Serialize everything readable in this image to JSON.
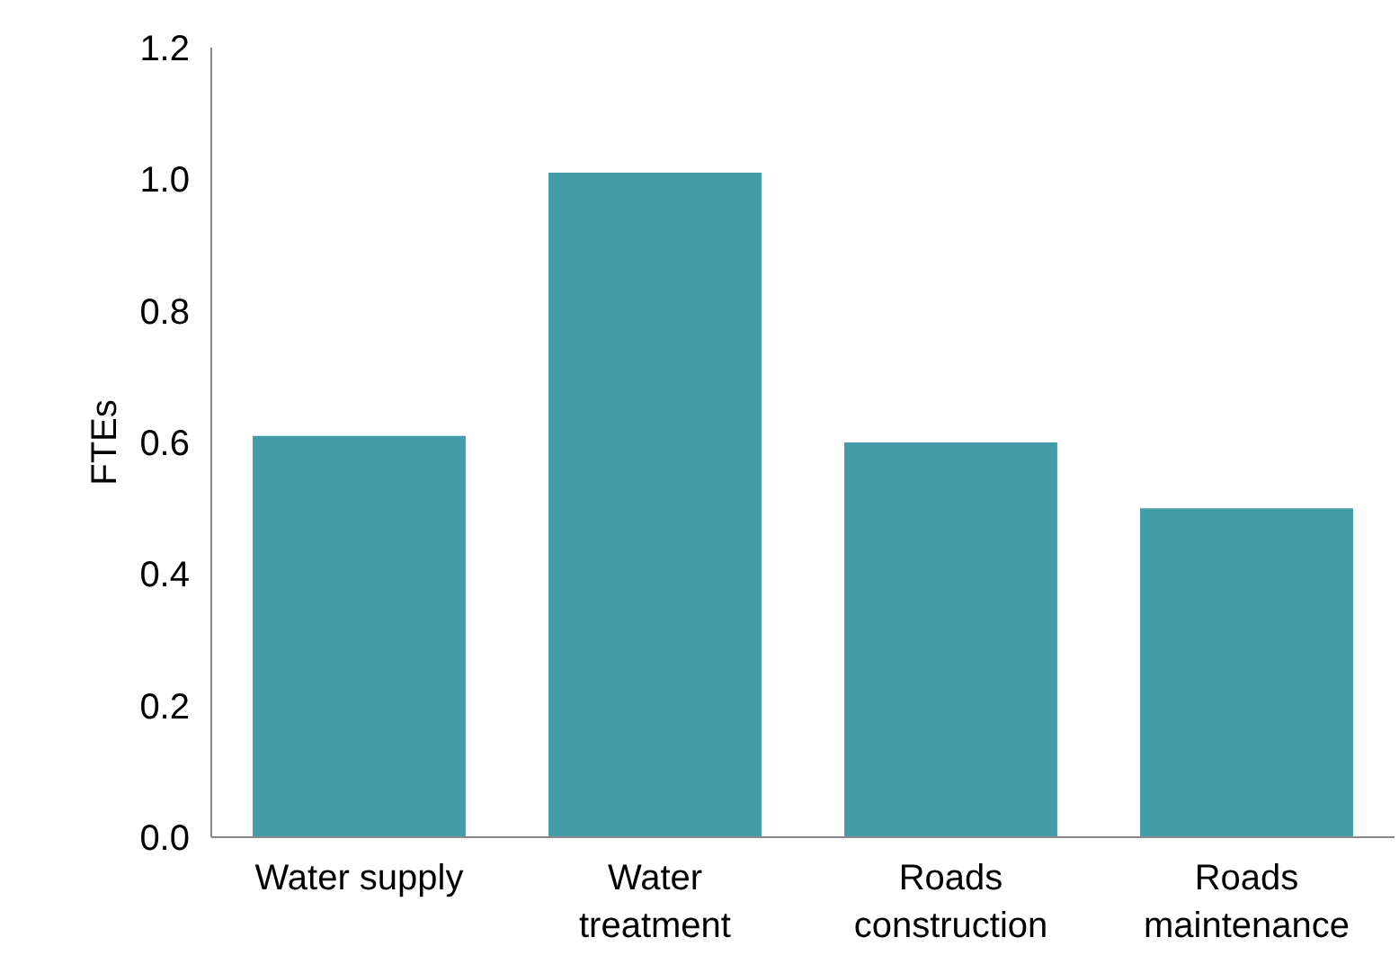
{
  "chart_data": {
    "type": "bar",
    "ylabel": "FTEs",
    "categories": [
      "Water supply",
      "Water\ntreatment",
      "Roads\nconstruction",
      "Roads\nmaintenance"
    ],
    "values": [
      0.61,
      1.01,
      0.6,
      0.5
    ],
    "color": "#429da9",
    "ylim": [
      0,
      1.2
    ],
    "yticks": [
      {
        "value": 0,
        "label": "0.0"
      },
      {
        "value": 0.2,
        "label": "0.2"
      },
      {
        "value": 0.4,
        "label": "0.4"
      },
      {
        "value": 0.6,
        "label": "0.6"
      },
      {
        "value": 0.8,
        "label": "0.8"
      },
      {
        "value": 1.0,
        "label": "1.0"
      },
      {
        "value": 1.2,
        "label": "1.2"
      }
    ]
  }
}
